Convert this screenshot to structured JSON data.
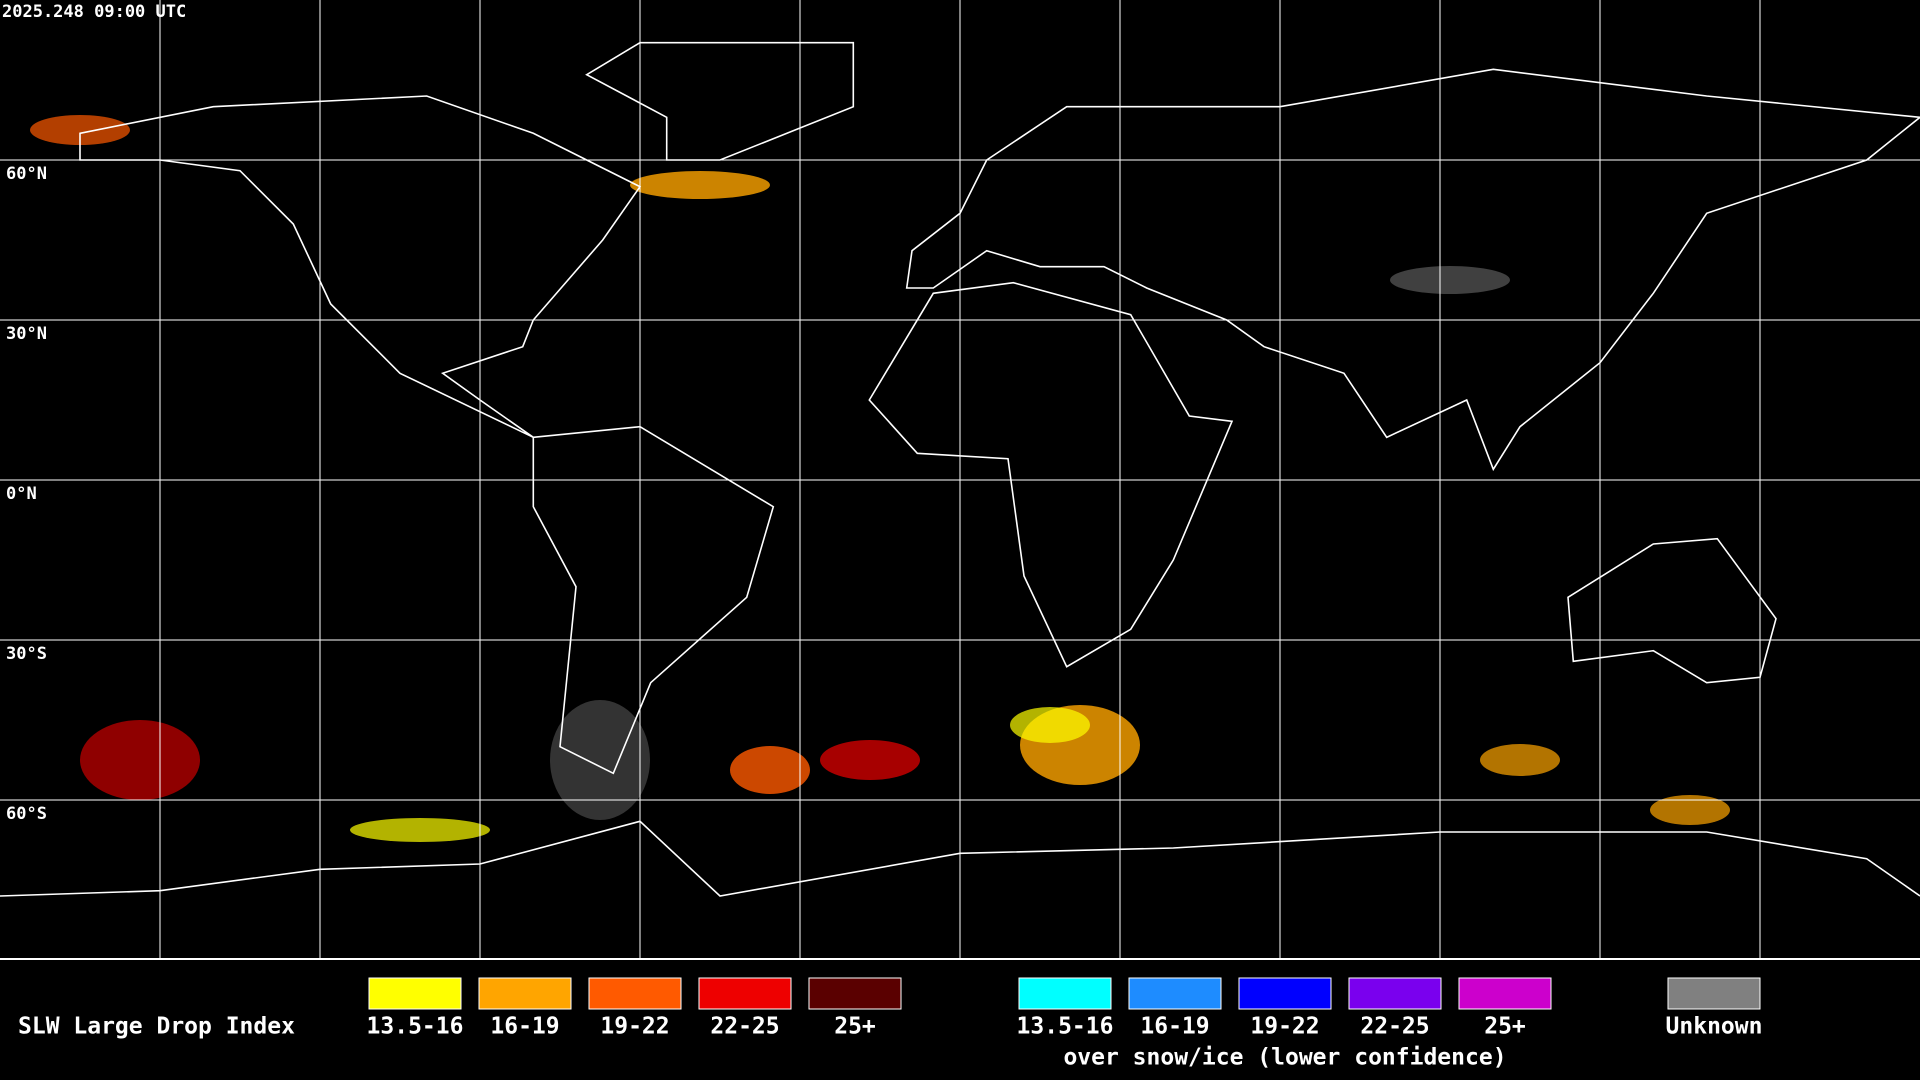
{
  "header": {
    "timestamp": "2025.248 09:00 UTC"
  },
  "map": {
    "latitude_labels": [
      "60°N",
      "30°N",
      "0°N",
      "30°S",
      "60°S"
    ]
  },
  "legend": {
    "title": "SLW Large Drop Index",
    "groups": [
      {
        "items": [
          {
            "label": "13.5-16",
            "color": "#ffff00"
          },
          {
            "label": "16-19",
            "color": "#ffa500"
          },
          {
            "label": "19-22",
            "color": "#ff5a00"
          },
          {
            "label": "22-25",
            "color": "#ee0000"
          },
          {
            "label": "25+",
            "color": "#5a0000"
          }
        ]
      },
      {
        "items": [
          {
            "label": "13.5-16",
            "color": "#00ffff"
          },
          {
            "label": "16-19",
            "color": "#1e8cff"
          },
          {
            "label": "19-22",
            "color": "#0000ff"
          },
          {
            "label": "22-25",
            "color": "#7a00ee"
          },
          {
            "label": "25+",
            "color": "#cc00cc"
          }
        ],
        "caption": "over snow/ice (lower confidence)"
      },
      {
        "items": [
          {
            "label": "Unknown",
            "color": "#808080"
          }
        ]
      }
    ]
  }
}
